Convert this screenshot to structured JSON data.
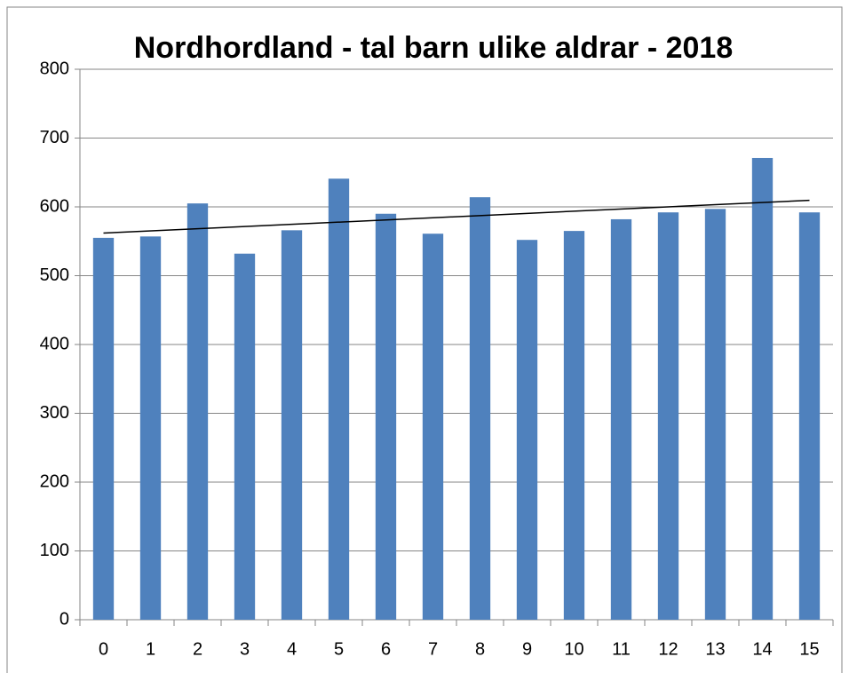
{
  "chart_data": {
    "type": "bar",
    "title": "Nordhordland - tal barn ulike aldrar - 2018",
    "categories": [
      "0",
      "1",
      "2",
      "3",
      "4",
      "5",
      "6",
      "7",
      "8",
      "9",
      "10",
      "11",
      "12",
      "13",
      "14",
      "15"
    ],
    "values": [
      555,
      557,
      605,
      532,
      566,
      641,
      590,
      561,
      614,
      552,
      565,
      582,
      592,
      597,
      671,
      592
    ],
    "color": "#4f81bd",
    "ylim": [
      0,
      800
    ],
    "yticks": [
      0,
      100,
      200,
      300,
      400,
      500,
      600,
      700,
      800
    ],
    "grid": true,
    "trendline": "linear"
  }
}
